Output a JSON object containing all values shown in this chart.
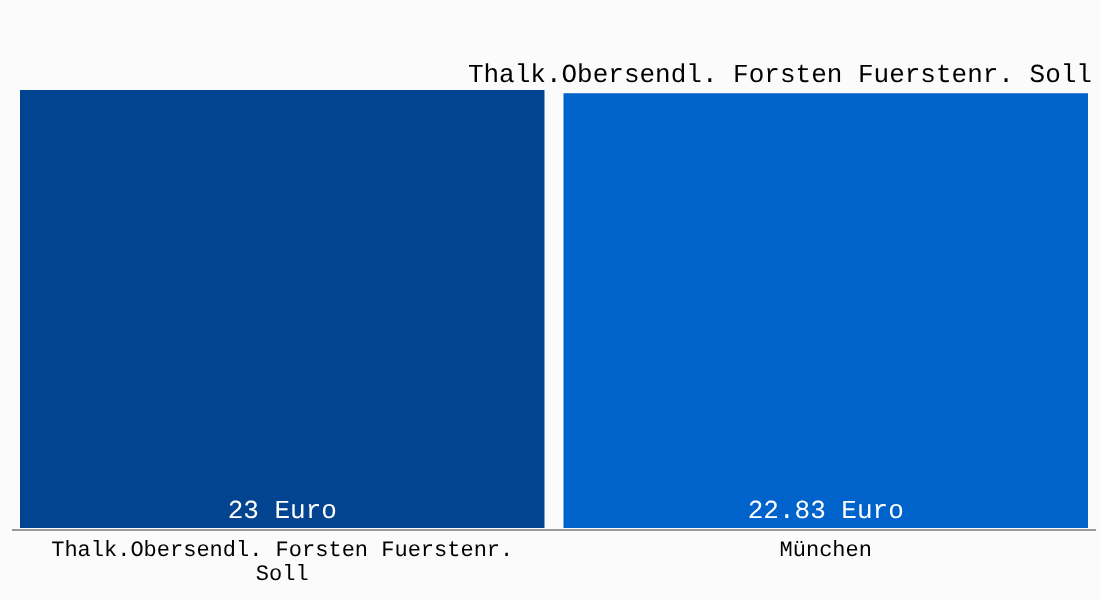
{
  "chart_data": {
    "type": "bar",
    "title": "Thalk.Obersendl. Forsten Fuerstenr. Soll",
    "categories": [
      "Thalk.Obersendl. Forsten Fuerstenr. Soll",
      "München"
    ],
    "values": [
      23,
      22.83
    ],
    "colors": [
      "#024490",
      "#0063cb"
    ],
    "value_labels": [
      "23 Euro",
      "22.83 Euro"
    ]
  }
}
